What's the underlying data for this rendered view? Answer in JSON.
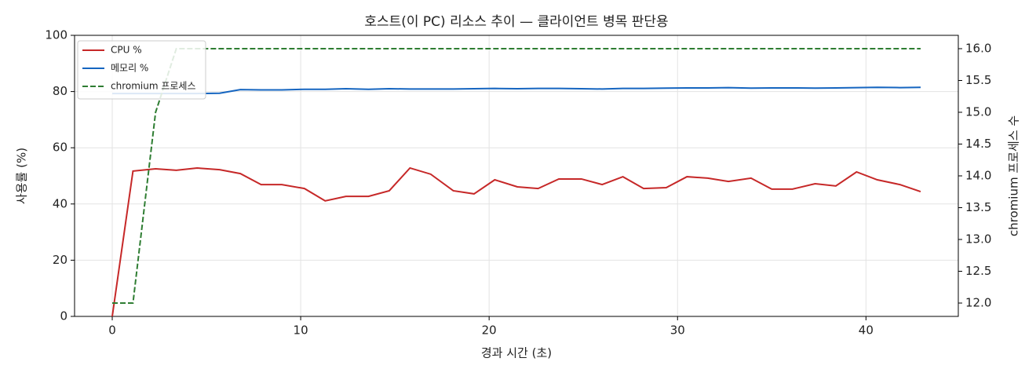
{
  "chart_data": {
    "type": "line",
    "title": "호스트(이 PC) 리소스 추이 — 클라이언트 병목 판단용",
    "x_label": "경과 시간 (초)",
    "y_label": "사용률 (%)",
    "y2_label": "chromium 프로세스 수",
    "x": [
      0,
      1.1,
      2.3,
      3.4,
      4.5,
      5.7,
      6.8,
      7.9,
      9.0,
      10.2,
      11.3,
      12.4,
      13.6,
      14.7,
      15.8,
      16.9,
      18.1,
      19.2,
      20.3,
      21.5,
      22.6,
      23.7,
      24.9,
      26.0,
      27.1,
      28.2,
      29.4,
      30.5,
      31.6,
      32.7,
      33.9,
      35.0,
      36.1,
      37.3,
      38.4,
      39.5,
      40.6,
      41.8,
      42.9
    ],
    "series": [
      {
        "name": "CPU %",
        "color": "#c62828",
        "style": "solid",
        "values": [
          0,
          51.7,
          52.5,
          52.0,
          52.8,
          52.2,
          50.8,
          46.9,
          46.9,
          45.5,
          41.1,
          42.7,
          42.7,
          44.7,
          52.8,
          50.6,
          44.7,
          43.6,
          48.6,
          46.1,
          45.5,
          48.9,
          48.9,
          46.9,
          49.7,
          45.5,
          45.8,
          49.7,
          49.2,
          48.0,
          49.2,
          45.3,
          45.3,
          47.2,
          46.4,
          51.4,
          48.6,
          46.9,
          44.4
        ]
      },
      {
        "name": "메모리 %",
        "color": "#1565c0",
        "style": "solid",
        "values": [
          79.3,
          79.3,
          79.3,
          79.3,
          79.3,
          79.4,
          80.7,
          80.6,
          80.6,
          80.8,
          80.8,
          81.0,
          80.8,
          81.0,
          80.9,
          80.9,
          80.9,
          81.0,
          81.1,
          81.0,
          81.1,
          81.1,
          81.0,
          80.9,
          81.1,
          81.1,
          81.2,
          81.3,
          81.3,
          81.4,
          81.2,
          81.3,
          81.3,
          81.2,
          81.3,
          81.4,
          81.5,
          81.4,
          81.5
        ]
      },
      {
        "name": "chromium 프로세스",
        "color": "#2e7d32",
        "style": "dashed",
        "axis": "y2",
        "values": [
          12,
          12,
          15,
          16,
          16,
          16,
          16,
          16,
          16,
          16,
          16,
          16,
          16,
          16,
          16,
          16,
          16,
          16,
          16,
          16,
          16,
          16,
          16,
          16,
          16,
          16,
          16,
          16,
          16,
          16,
          16,
          16,
          16,
          16,
          16,
          16,
          16,
          16,
          16
        ]
      }
    ],
    "xlim": [
      -2,
      44.9
    ],
    "xticks": [
      0,
      10,
      20,
      30,
      40
    ],
    "ylim": [
      0,
      100
    ],
    "yticks": [
      0,
      20,
      40,
      60,
      80,
      100
    ],
    "y2lim": [
      11.79,
      16.21
    ],
    "y2ticks": [
      {
        "value": 12,
        "label": "12.0"
      },
      12.5,
      {
        "value": 13,
        "label": "13.0"
      },
      13.5,
      {
        "value": 14,
        "label": "14.0"
      },
      14.5,
      {
        "value": 15,
        "label": "15.0"
      },
      15.5,
      {
        "value": 16,
        "label": "16.0"
      }
    ],
    "grid": true,
    "legend": "upper-left"
  }
}
